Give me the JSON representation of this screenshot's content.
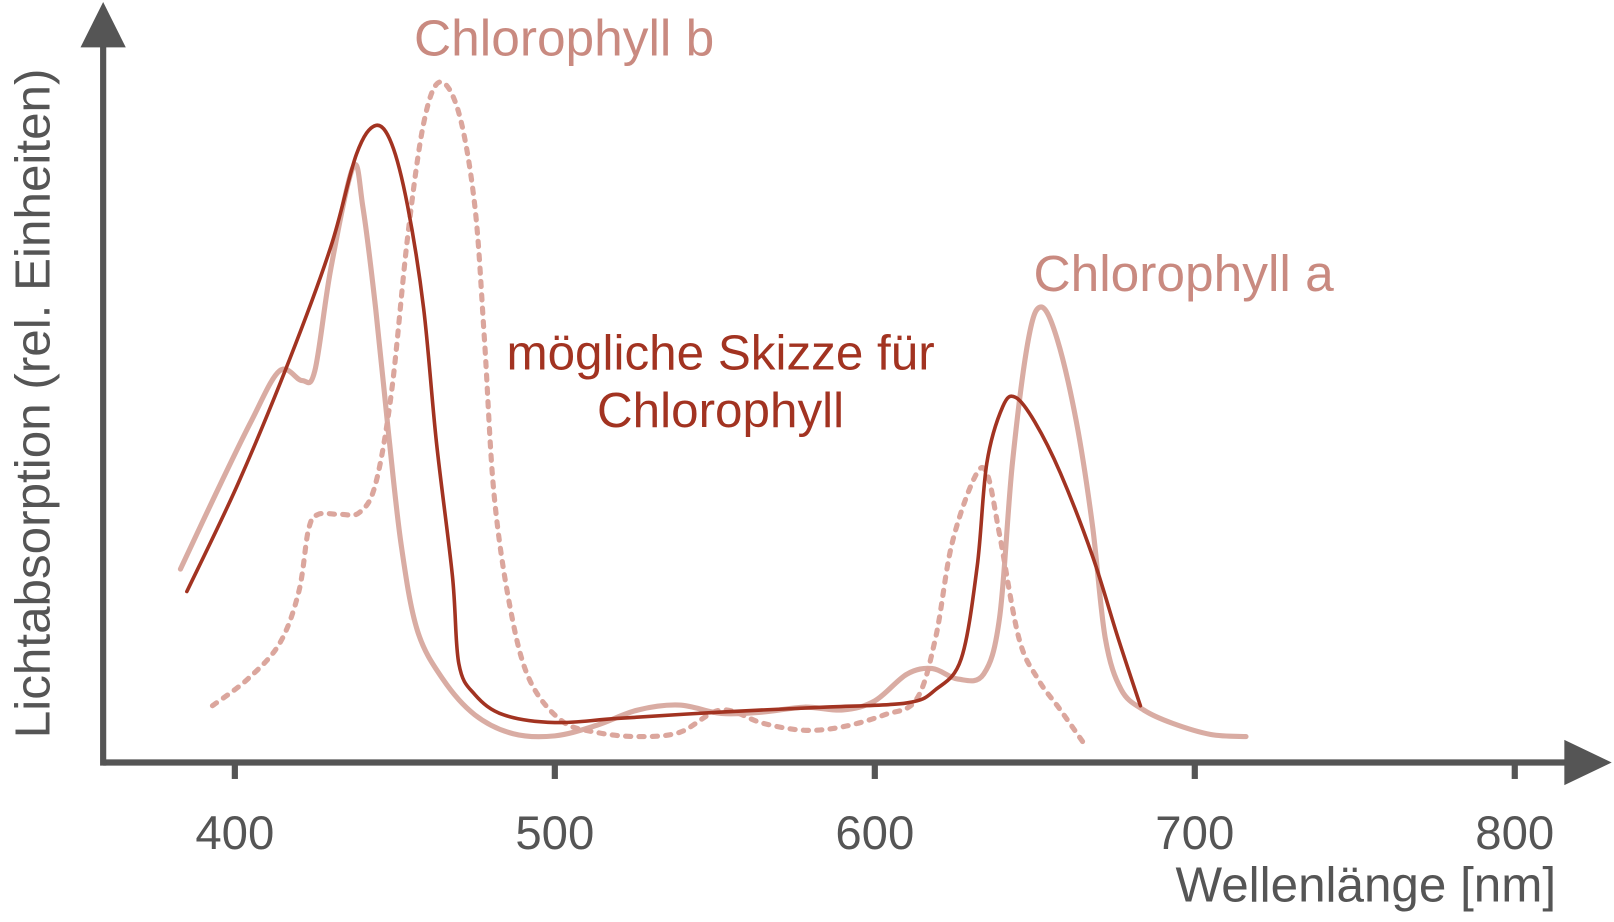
{
  "chart_data": {
    "type": "line",
    "x_label": "Wellenlänge [nm]",
    "y_label": "Lichtabsorption (rel. Einheiten)",
    "xlim": [
      360,
      820
    ],
    "xticks": [
      400,
      500,
      600,
      700,
      800
    ],
    "ylim": [
      0,
      100
    ],
    "series": [
      {
        "name": "Chlorophyll a",
        "color": "#d9aca3",
        "label_color": "#c98a80",
        "dash": "solid",
        "x": [
          383,
          394,
          405,
          414,
          421,
          425,
          430,
          437,
          440,
          444,
          448,
          452,
          457,
          465,
          475,
          487,
          500,
          513,
          526,
          539,
          552,
          565,
          578,
          590,
          600,
          610,
          618,
          626,
          634,
          639,
          643,
          648,
          652,
          657,
          663,
          668,
          672,
          677,
          684,
          693,
          705,
          716
        ],
        "values": [
          27.6,
          38.3,
          48.6,
          55.9,
          54.5,
          55.9,
          70.5,
          85,
          79.3,
          64.8,
          47.1,
          31,
          18.9,
          11.9,
          6.8,
          4.1,
          3.8,
          5.3,
          7.5,
          8.2,
          7,
          7.2,
          7.9,
          7.5,
          8.8,
          12.6,
          13.4,
          11.9,
          12.6,
          20.7,
          42.7,
          60.4,
          65,
          60.4,
          48.6,
          33.9,
          17.8,
          10.4,
          7.5,
          5.6,
          4,
          3.7
        ]
      },
      {
        "name": "Chlorophyll b",
        "color": "#dba69d",
        "label_color": "#c98a80",
        "dash": "dotted",
        "x": [
          393,
          404,
          414,
          420,
          423,
          426,
          433,
          439,
          444,
          449,
          454,
          459,
          464,
          470,
          475,
          478,
          481,
          486,
          492,
          502,
          513,
          526,
          539,
          552,
          565,
          578,
          590,
          603,
          613,
          619,
          624,
          631,
          635,
          639,
          645,
          651,
          658,
          666
        ],
        "values": [
          8.1,
          11.9,
          17,
          24.4,
          33.2,
          35.4,
          35.4,
          35.7,
          39.8,
          53,
          75,
          91.2,
          97.1,
          92.7,
          79.4,
          60.4,
          38.3,
          22.2,
          11.9,
          6,
          4.3,
          3.7,
          4.3,
          7.5,
          5.6,
          4.6,
          5.1,
          6.8,
          9,
          17.8,
          31,
          40.5,
          41.3,
          32.5,
          17.8,
          11.9,
          7.5,
          2.3
        ]
      },
      {
        "name": "mögliche Skizze für Chlorophyll",
        "color": "#a23321",
        "label_color": "#a23321",
        "dash": "solid",
        "x": [
          385,
          401,
          417,
          430,
          438,
          444,
          449,
          454,
          459,
          463,
          468,
          470,
          475,
          484,
          500,
          520,
          552,
          584,
          610,
          619,
          627,
          632,
          635,
          640,
          644,
          650,
          658,
          668,
          676,
          683
        ],
        "values": [
          24.4,
          39.8,
          57.4,
          73.6,
          86.8,
          90.9,
          88.3,
          79.4,
          64.8,
          45.7,
          26.6,
          14.1,
          9.7,
          6.8,
          5.7,
          6.3,
          7.2,
          7.9,
          8.5,
          10.4,
          14.8,
          28,
          42.7,
          50.8,
          52.1,
          48.6,
          41.3,
          29.5,
          17.8,
          8.1
        ]
      }
    ]
  }
}
